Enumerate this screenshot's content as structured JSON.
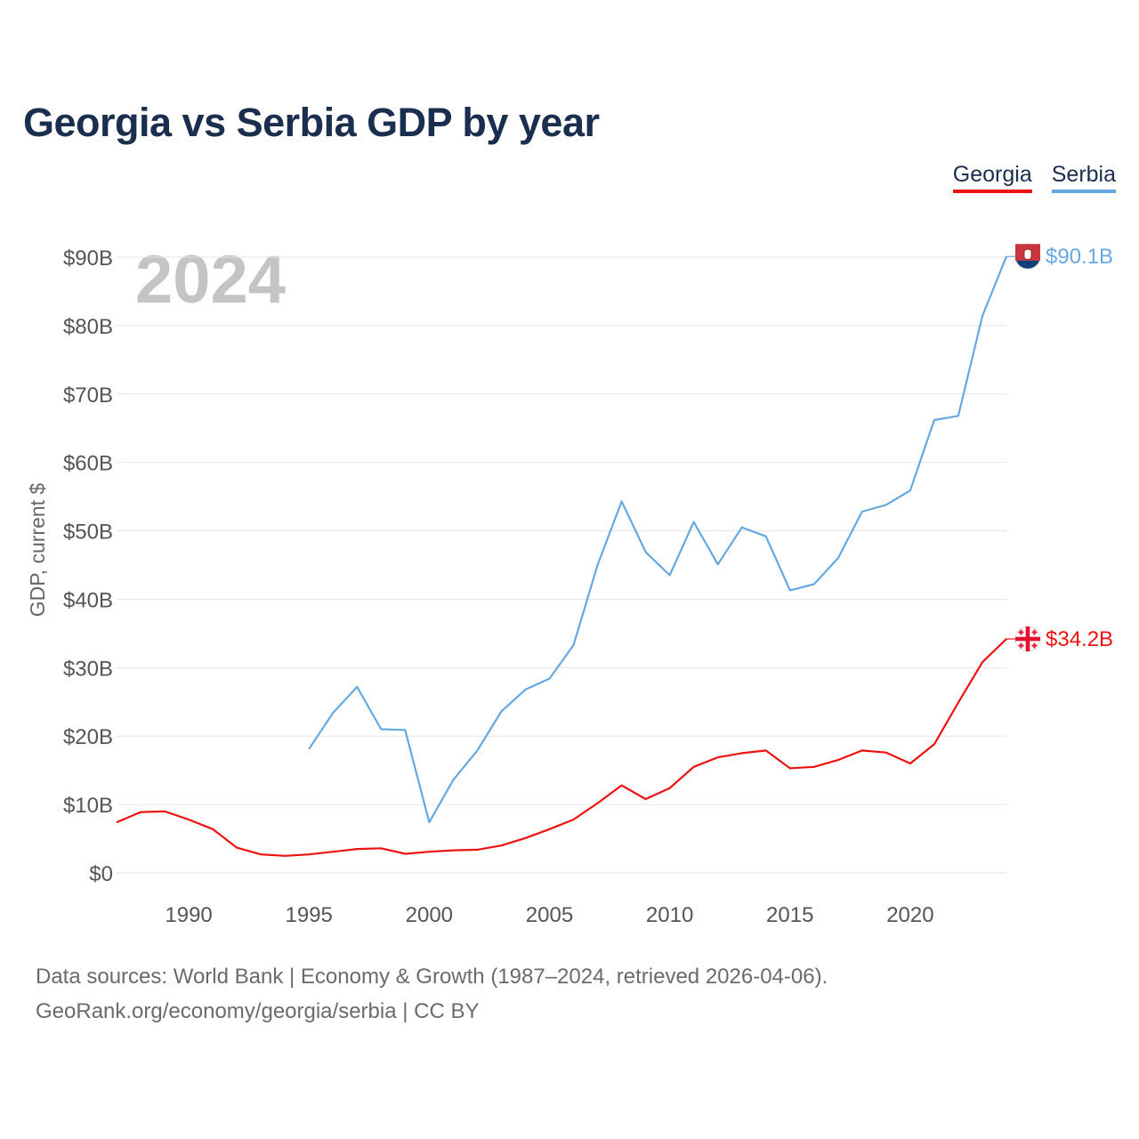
{
  "title": "Georgia vs Serbia GDP by year",
  "legend": {
    "georgia": "Georgia",
    "serbia": "Serbia"
  },
  "year_watermark": "2024",
  "y_axis_label": "GDP, current $",
  "source": {
    "line1": "Data sources: World Bank | Economy & Growth (1987–2024, retrieved 2026-04-06).",
    "line2": "GeoRank.org/economy/georgia/serbia | CC BY"
  },
  "colors": {
    "georgia": "#ee1111",
    "serbia": "#66a8e2",
    "grid": "#e6e6e6",
    "tick": "#555555",
    "watermark": "#c4c4c4"
  },
  "chart_data": {
    "type": "line",
    "title": "Georgia vs Serbia GDP by year",
    "xlabel": "",
    "ylabel": "GDP, current $",
    "xlim": [
      1987,
      2024
    ],
    "ylim": [
      0,
      90
    ],
    "y_unit": "billions USD",
    "x_ticks": [
      1990,
      1995,
      2000,
      2005,
      2010,
      2015,
      2020
    ],
    "x_tick_labels": [
      "1990",
      "1995",
      "2000",
      "2005",
      "2010",
      "2015",
      "2020"
    ],
    "y_ticks": [
      0,
      10,
      20,
      30,
      40,
      50,
      60,
      70,
      80,
      90
    ],
    "y_tick_labels": [
      "$0",
      "$10B",
      "$20B",
      "$30B",
      "$40B",
      "$50B",
      "$60B",
      "$70B",
      "$80B",
      "$90B"
    ],
    "grid": true,
    "series": [
      {
        "name": "Georgia",
        "x": [
          1987,
          1988,
          1989,
          1990,
          1991,
          1992,
          1993,
          1994,
          1995,
          1996,
          1997,
          1998,
          1999,
          2000,
          2001,
          2002,
          2003,
          2004,
          2005,
          2006,
          2007,
          2008,
          2009,
          2010,
          2011,
          2012,
          2013,
          2014,
          2015,
          2016,
          2017,
          2018,
          2019,
          2020,
          2021,
          2022,
          2023,
          2024
        ],
        "values": [
          7.4,
          8.9,
          9.0,
          7.8,
          6.4,
          3.7,
          2.7,
          2.5,
          2.7,
          3.1,
          3.5,
          3.6,
          2.8,
          3.1,
          3.3,
          3.4,
          4.0,
          5.1,
          6.4,
          7.8,
          10.2,
          12.8,
          10.8,
          12.4,
          15.5,
          16.9,
          17.5,
          17.9,
          15.3,
          15.5,
          16.5,
          17.9,
          17.6,
          16.0,
          18.8,
          24.9,
          30.8,
          34.2
        ],
        "end_label": "$34.2B"
      },
      {
        "name": "Serbia",
        "x": [
          1995,
          1996,
          1997,
          1998,
          1999,
          2000,
          2001,
          2002,
          2003,
          2004,
          2005,
          2006,
          2007,
          2008,
          2009,
          2010,
          2011,
          2012,
          2013,
          2014,
          2015,
          2016,
          2017,
          2018,
          2019,
          2020,
          2021,
          2022,
          2023,
          2024
        ],
        "values": [
          18.1,
          23.4,
          27.2,
          21.0,
          20.9,
          7.4,
          13.6,
          17.9,
          23.6,
          26.8,
          28.4,
          33.3,
          45.0,
          54.3,
          46.9,
          43.5,
          51.3,
          45.1,
          50.5,
          49.2,
          41.3,
          42.2,
          46.0,
          52.8,
          53.8,
          55.9,
          66.2,
          66.8,
          81.4,
          90.1
        ],
        "end_label": "$90.1B"
      }
    ],
    "end_labels": [
      "$90.1B",
      "$34.2B"
    ]
  }
}
